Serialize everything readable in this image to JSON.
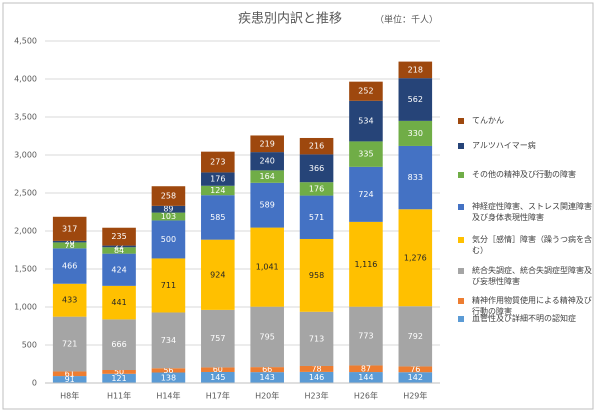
{
  "chart_data": {
    "type": "stacked-bar",
    "title": "疾患別内訳と推移",
    "subtitle": "（単位：千人）",
    "categories": [
      "H8年",
      "H11年",
      "H14年",
      "H17年",
      "H20年",
      "H23年",
      "H26年",
      "H29年"
    ],
    "ylim": [
      0,
      4500
    ],
    "yticks": [
      0,
      {
        "value": 500,
        "label": "500"
      },
      {
        "value": 1000,
        "label": "1,000"
      },
      {
        "value": 1500,
        "label": "1,500"
      },
      {
        "value": 2000,
        "label": "2,000"
      },
      {
        "value": 2500,
        "label": "2,500"
      },
      {
        "value": 3000,
        "label": "3,000"
      },
      {
        "value": 3500,
        "label": "3,500"
      },
      {
        "value": 4000,
        "label": "4,000"
      },
      {
        "value": 4500,
        "label": "4,500"
      }
    ],
    "grid": true,
    "legend": "right",
    "series": [
      {
        "name": "血管性及び詳細不明の認知症",
        "color": "#5b9bd5",
        "values": [
          91,
          121,
          138,
          145,
          143,
          146,
          144,
          142
        ]
      },
      {
        "name": "精神作用物質使用による精神及び行動の障害",
        "color": "#ed7d31",
        "values": [
          61,
          50,
          56,
          60,
          66,
          78,
          87,
          76
        ]
      },
      {
        "name": "統合失調症、統合失調症型障害及び妄想性障害",
        "color": "#a5a5a5",
        "values": [
          721,
          666,
          734,
          757,
          795,
          713,
          773,
          792
        ]
      },
      {
        "name": "気分［感情］障害（躁うつ病を含む）",
        "color": "#ffc000",
        "values": [
          433,
          441,
          711,
          924,
          1041,
          958,
          1116,
          1276
        ],
        "value_labels": [
          null,
          null,
          null,
          null,
          "1,041",
          null,
          "1,116",
          "1,276"
        ]
      },
      {
        "name": "神経症性障害、ストレス関連障害及び身体表現性障害",
        "color": "#4472c4",
        "values": [
          466,
          424,
          500,
          585,
          589,
          571,
          724,
          833
        ]
      },
      {
        "name": "その他の精神及び行動の障害",
        "color": "#70ad47",
        "values": [
          78,
          84,
          103,
          124,
          164,
          176,
          335,
          330
        ]
      },
      {
        "name": "アルツハイマー病",
        "color": "#264478",
        "values": [
          20,
          22,
          89,
          176,
          240,
          366,
          534,
          562
        ]
      },
      {
        "name": "てんかん",
        "color": "#9e480e",
        "values": [
          317,
          235,
          258,
          273,
          219,
          216,
          252,
          218
        ]
      }
    ]
  }
}
